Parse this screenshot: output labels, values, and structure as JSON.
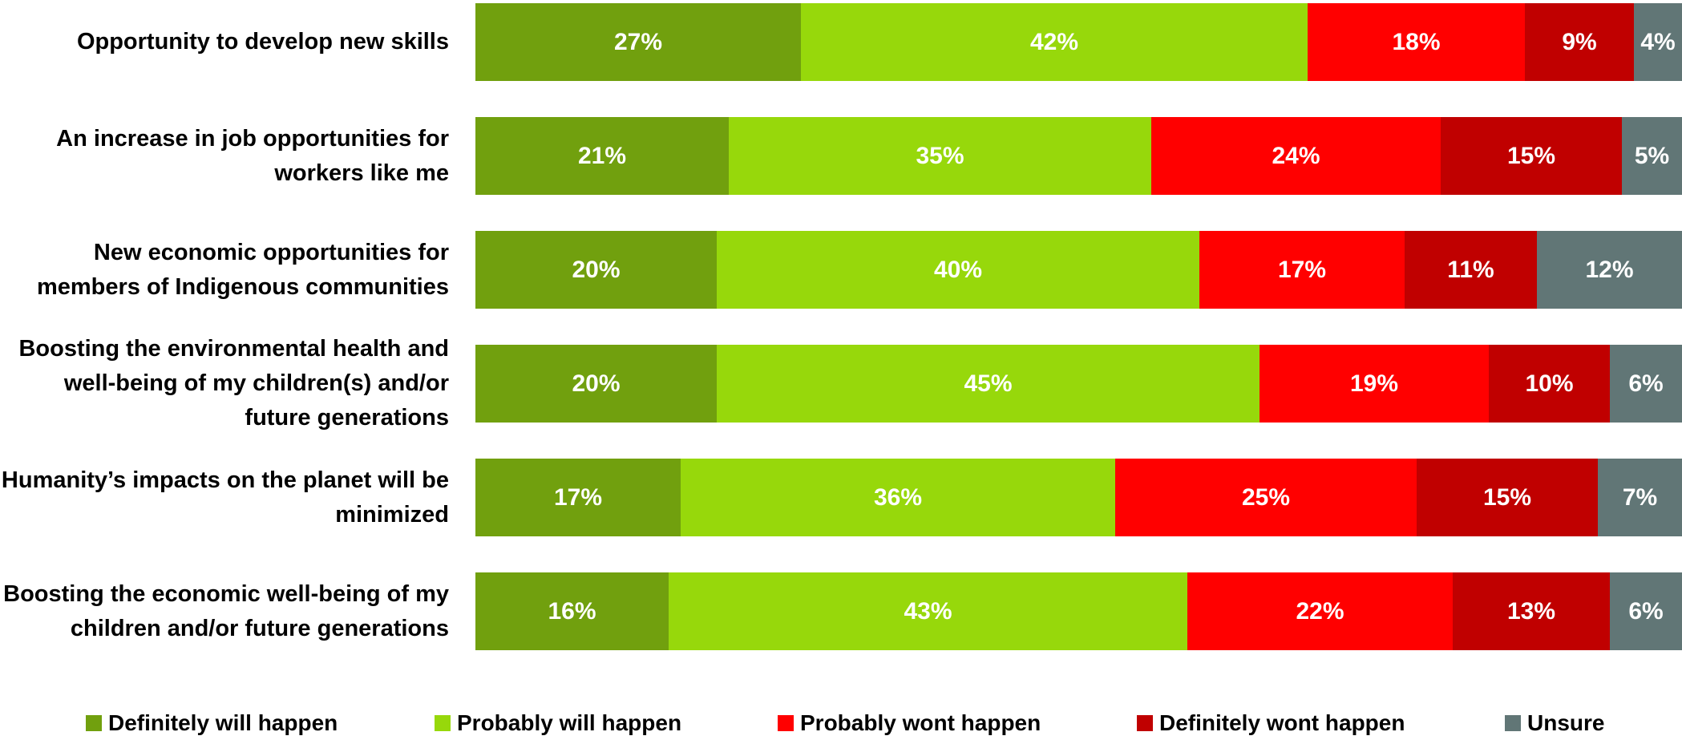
{
  "chart_data": {
    "type": "bar",
    "orientation": "horizontal",
    "stacked": true,
    "normalized": true,
    "title": "",
    "xlabel": "",
    "ylabel": "",
    "grid": false,
    "legend_position": "bottom",
    "categories": [
      "Opportunity to develop new skills",
      "An increase in job opportunities for workers like me",
      "New economic opportunities for members of Indigenous communities",
      "Boosting the environmental health and well-being of my children(s) and/or future generations",
      "Humanity’s impacts on the planet will be minimized",
      "Boosting the economic well-being of my children and/or future generations"
    ],
    "series": [
      {
        "name": "Definitely will happen",
        "color": "#71A00E",
        "values": [
          27,
          21,
          20,
          20,
          17,
          16
        ],
        "labels": [
          "27%",
          "21%",
          "20%",
          "20%",
          "17%",
          "16%"
        ]
      },
      {
        "name": "Probably will happen",
        "color": "#97D80B",
        "values": [
          42,
          35,
          40,
          45,
          36,
          43
        ],
        "labels": [
          "42%",
          "35%",
          "40%",
          "45%",
          "36%",
          "43%"
        ]
      },
      {
        "name": "Probably wont happen",
        "color": "#FF0000",
        "values": [
          18,
          24,
          17,
          19,
          25,
          22
        ],
        "labels": [
          "18%",
          "24%",
          "17%",
          "19%",
          "25%",
          "22%"
        ]
      },
      {
        "name": "Definitely wont happen",
        "color": "#C00000",
        "values": [
          9,
          15,
          11,
          10,
          15,
          13
        ],
        "labels": [
          "9%",
          "15%",
          "11%",
          "10%",
          "15%",
          "13%"
        ]
      },
      {
        "name": "Unsure",
        "color": "#617676",
        "values": [
          4,
          5,
          12,
          6,
          7,
          6
        ],
        "labels": [
          "4%",
          "5%",
          "12%",
          "6%",
          "7%",
          "6%"
        ]
      }
    ]
  }
}
